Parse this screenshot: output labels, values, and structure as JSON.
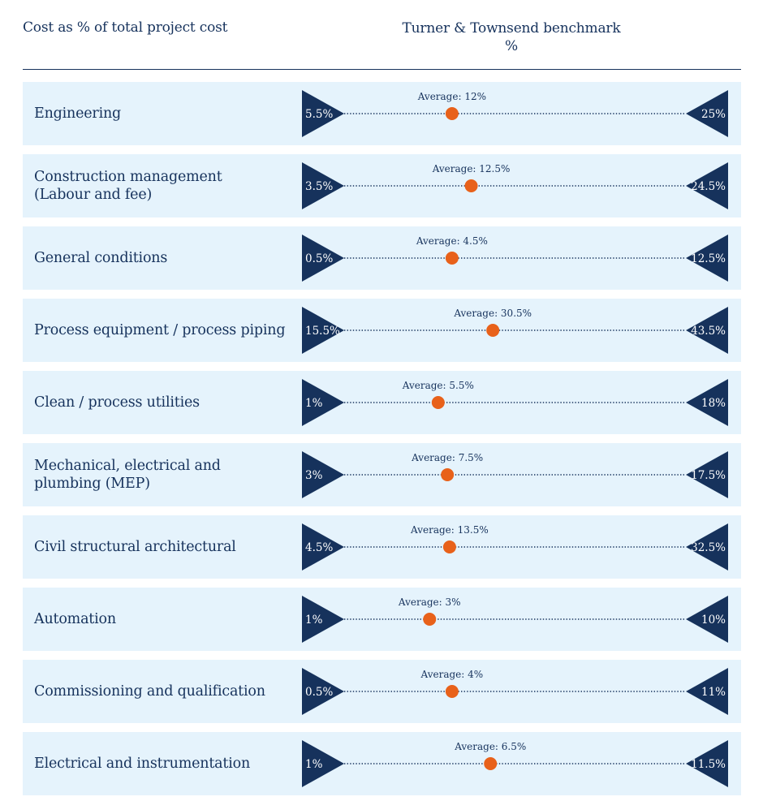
{
  "header": {
    "left": "Cost as % of total project cost",
    "right_line1": "Turner & Townsend benchmark",
    "right_line2": "%"
  },
  "colors": {
    "navy": "#16325c",
    "row_bg": "#e5f3fc",
    "dot": "#e8611a"
  },
  "chart_data": {
    "type": "range",
    "xlim": [
      0,
      45
    ],
    "categories": [
      "Engineering",
      "Construction management\n(Labour and fee)",
      "General conditions",
      "Process equipment / process piping",
      "Clean / process utilities",
      "Mechanical, electrical and\nplumbing (MEP)",
      "Civil structural architectural",
      "Automation",
      "Commissioning and qualification",
      "Electrical and instrumentation"
    ],
    "series": [
      {
        "min": [
          5.5,
          3.5,
          0.5,
          15.5,
          1,
          3,
          4.5,
          1,
          0.5,
          1
        ],
        "max": [
          25,
          24.5,
          12.5,
          43.5,
          18,
          17.5,
          32.5,
          10,
          11,
          11.5
        ],
        "average": [
          12,
          12.5,
          4.5,
          30.5,
          5.5,
          7.5,
          13.5,
          3,
          4,
          6.5
        ]
      }
    ],
    "min_labels": [
      "5.5%",
      "3.5%",
      "0.5%",
      "15.5%",
      "1%",
      "3%",
      "4.5%",
      "1%",
      "0.5%",
      "1%"
    ],
    "max_labels": [
      "25%",
      "24.5%",
      "12.5%",
      "43.5%",
      "18%",
      "17.5%",
      "32.5%",
      "10%",
      "11%",
      "11.5%"
    ],
    "average_labels": [
      "Average: 12%",
      "Average: 12.5%",
      "Average: 4.5%",
      "Average: 30.5%",
      "Average: 5.5%",
      "Average: 7.5%",
      "Average: 13.5%",
      "Average: 3%",
      "Average: 4%",
      "Average: 6.5%"
    ]
  }
}
